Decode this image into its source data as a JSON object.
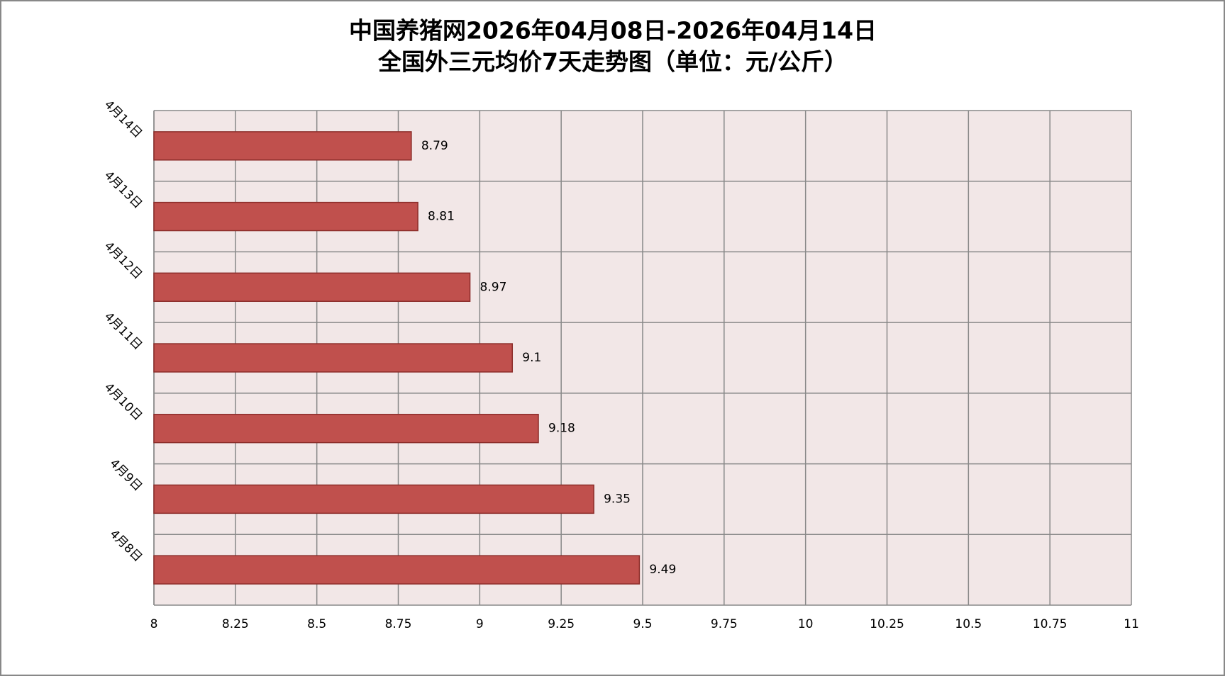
{
  "chart_data": {
    "type": "bar",
    "orientation": "horizontal",
    "title": "中国养猪网2026年04月08日-2026年04月14日",
    "subtitle": "全国外三元均价7天走势图（单位：元/公斤）",
    "categories": [
      "4月8日",
      "4月9日",
      "4月10日",
      "4月11日",
      "4月12日",
      "4月13日",
      "4月14日"
    ],
    "values": [
      9.49,
      9.35,
      9.18,
      9.1,
      8.97,
      8.81,
      8.79
    ],
    "color": "#c0504d",
    "xlim": [
      8,
      11
    ],
    "xticks": [
      8,
      8.25,
      8.5,
      8.75,
      9,
      9.25,
      9.5,
      9.75,
      10,
      10.25,
      10.5,
      10.75,
      11
    ],
    "grid": true
  }
}
